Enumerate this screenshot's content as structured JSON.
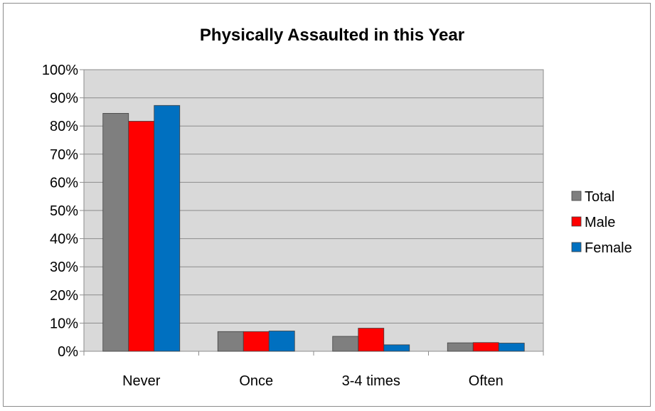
{
  "chart_data": {
    "type": "bar",
    "title": "Physically Assaulted in this Year",
    "xlabel": "",
    "ylabel": "",
    "categories": [
      "Never",
      "Once",
      "3-4 times",
      "Often"
    ],
    "series": [
      {
        "name": "Total",
        "color": "#7f7f7f",
        "values": [
          84.5,
          7.0,
          5.3,
          3.0
        ]
      },
      {
        "name": "Male",
        "color": "#ff0000",
        "values": [
          81.7,
          7.0,
          8.2,
          3.1
        ]
      },
      {
        "name": "Female",
        "color": "#0070c0",
        "values": [
          87.3,
          7.2,
          2.3,
          2.9
        ]
      }
    ],
    "ylim": [
      0,
      100
    ],
    "yticks": [
      "0%",
      "10%",
      "20%",
      "30%",
      "40%",
      "50%",
      "60%",
      "70%",
      "80%",
      "90%",
      "100%"
    ],
    "grid": true,
    "legend_position": "right",
    "plot_background": "#d9d9d9"
  }
}
